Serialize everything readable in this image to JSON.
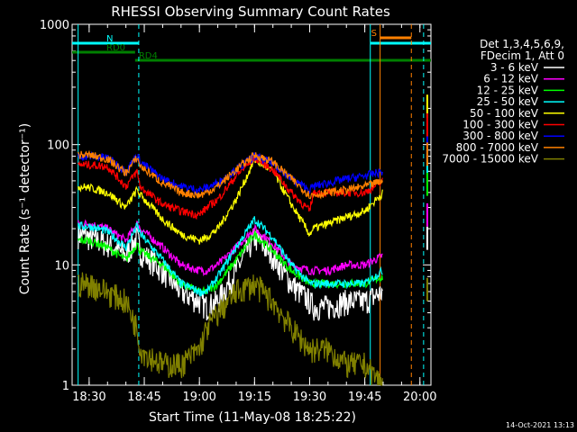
{
  "chart_data": {
    "type": "line",
    "title": "RHESSI Observing Summary Count Rates",
    "xlabel": "Start Time (11-May-08 18:25:22)",
    "ylabel": "Count Rate (s⁻¹ detector⁻¹)",
    "y_scale": "log",
    "ylim": [
      1,
      1000
    ],
    "xlim": [
      "18:25:22",
      "20:03:00"
    ],
    "x_ticks": [
      "18:30",
      "18:45",
      "19:00",
      "19:15",
      "19:30",
      "19:45",
      "20:00"
    ],
    "y_ticks": [
      "1",
      "10",
      "100",
      "1000"
    ],
    "legend_header": [
      "Det 1,3,4,5,6,9,",
      "FDecim 1, Att 0"
    ],
    "legend_position": "right",
    "footer_date": "14-Oct-2021 13:13",
    "flags": [
      {
        "label": "N",
        "color": "#00ffff",
        "start": "18:25:22",
        "end": "18:43:30"
      },
      {
        "label": "RD0",
        "color": "#008000",
        "start": "18:25:22",
        "end": "18:42:30"
      },
      {
        "label": "RD4",
        "color": "#008000",
        "start": "18:42:30",
        "end": "20:03:00"
      },
      {
        "label": "S",
        "color": "#ff8000",
        "start": "19:49:10",
        "end": "19:57:40"
      },
      {
        "label": "",
        "color": "#00ffff",
        "start": "19:46:30",
        "end": "20:03:00"
      }
    ],
    "x": [
      "18:27",
      "18:30",
      "18:35",
      "18:40",
      "18:43",
      "18:44",
      "18:50",
      "18:55",
      "19:00",
      "19:02",
      "19:05",
      "19:10",
      "19:15",
      "19:20",
      "19:25",
      "19:30",
      "19:31",
      "19:35",
      "19:40",
      "19:45",
      "19:50",
      "19:51",
      "20:01",
      "20:02"
    ],
    "series": [
      {
        "name": "3 - 6 keV",
        "color": "#ffffff",
        "values": [
          18,
          17,
          15,
          12,
          17,
          13,
          9,
          6,
          5,
          4.5,
          5,
          9,
          17,
          12,
          7,
          5,
          4.5,
          4.5,
          5,
          5,
          6,
          null,
          null,
          16
        ]
      },
      {
        "name": "6 - 12 keV",
        "color": "#ff00ff",
        "values": [
          22,
          22,
          20,
          16,
          22,
          20,
          14,
          10,
          9,
          9,
          10,
          14,
          20,
          15,
          10,
          9,
          9,
          9,
          10,
          10,
          12,
          null,
          null,
          25
        ]
      },
      {
        "name": "12 - 25 keV",
        "color": "#00ff00",
        "values": [
          16,
          16,
          14,
          11,
          15,
          13,
          10,
          7,
          6,
          6,
          7,
          11,
          18,
          13,
          9,
          7,
          7,
          7,
          7,
          7,
          8,
          null,
          null,
          45
        ]
      },
      {
        "name": "25 - 50 keV",
        "color": "#00ffff",
        "values": [
          21,
          21,
          19,
          14,
          21,
          18,
          11,
          7,
          6,
          6,
          8,
          14,
          24,
          17,
          10,
          7,
          7,
          7,
          7,
          7,
          9,
          null,
          null,
          70
        ]
      },
      {
        "name": "50 - 100 keV",
        "color": "#ffff00",
        "values": [
          45,
          44,
          40,
          30,
          42,
          38,
          24,
          18,
          16,
          17,
          20,
          35,
          75,
          60,
          32,
          18,
          20,
          22,
          25,
          28,
          40,
          null,
          null,
          200
        ]
      },
      {
        "name": "100 - 300 keV",
        "color": "#ff0000",
        "values": [
          68,
          68,
          66,
          45,
          60,
          44,
          32,
          28,
          26,
          30,
          35,
          55,
          78,
          62,
          40,
          28,
          40,
          40,
          40,
          40,
          50,
          null,
          null,
          140
        ]
      },
      {
        "name": "300 - 800 keV",
        "color": "#0000ff",
        "values": [
          80,
          80,
          78,
          60,
          82,
          72,
          52,
          45,
          42,
          44,
          48,
          62,
          80,
          70,
          52,
          42,
          45,
          48,
          52,
          55,
          60,
          null,
          null,
          90
        ]
      },
      {
        "name": "800 - 7000 keV",
        "color": "#ff8000",
        "values": [
          82,
          82,
          76,
          58,
          78,
          66,
          48,
          40,
          38,
          40,
          45,
          62,
          82,
          72,
          52,
          38,
          38,
          40,
          42,
          45,
          50,
          null,
          null,
          80
        ]
      },
      {
        "name": "7000 - 15000 keV",
        "color": "#808000",
        "values": [
          7,
          7,
          6,
          5,
          3,
          2,
          1.5,
          1.5,
          2,
          3,
          4,
          6,
          7,
          5,
          3,
          2,
          2,
          2,
          1.5,
          1.5,
          1,
          null,
          null,
          6
        ]
      }
    ]
  }
}
